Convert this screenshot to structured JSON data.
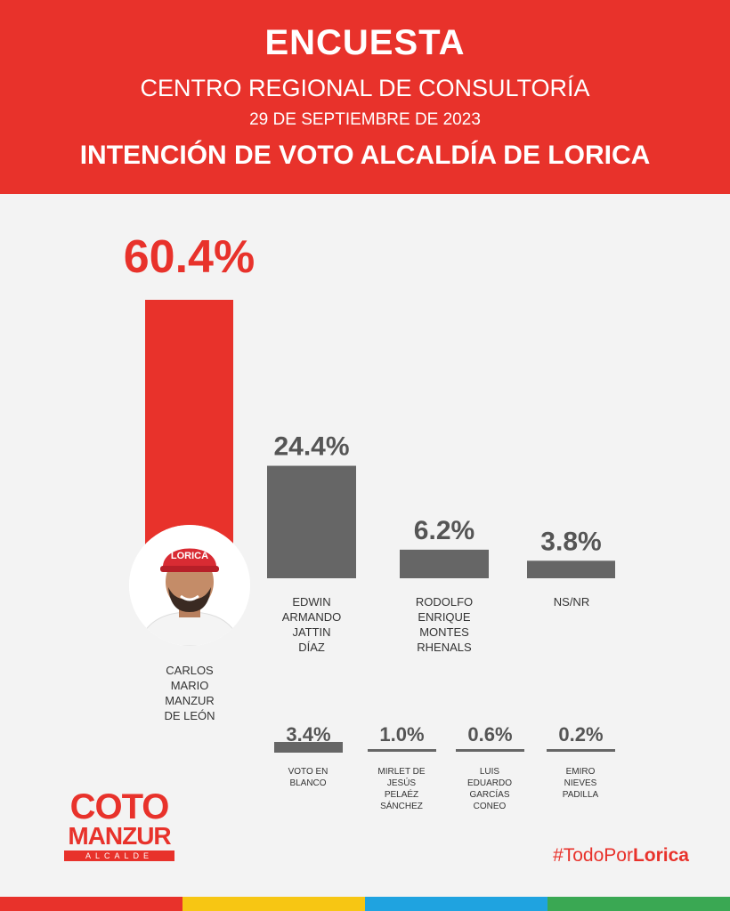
{
  "header": {
    "title": "ENCUESTA",
    "subtitle": "CENTRO REGIONAL DE CONSULTORÍA",
    "date": "29 DE SEPTIEMBRE DE 2023",
    "question": "INTENCIÓN DE VOTO ALCALDÍA DE LORICA"
  },
  "chart_data": {
    "type": "bar",
    "unit": "%",
    "series": [
      {
        "values": [
          60.4,
          24.4,
          6.2,
          3.8,
          3.4,
          1.0,
          0.6,
          0.2
        ]
      }
    ],
    "categories": [
      "CARLOS MARIO MANZUR DE LEÓN",
      "EDWIN ARMANDO JATTIN DÍAZ",
      "RODOLFO ENRIQUE MONTES RHENALS",
      "NS/NR",
      "VOTO EN BLANCO",
      "MIRLET DE JESÚS PELAÉZ SÁNCHEZ",
      "LUIS EDUARDO GARCÍAS CONEO",
      "EMIRO NIEVES PADILLA"
    ],
    "value_labels": [
      "60.4%",
      "24.4%",
      "6.2%",
      "3.8%",
      "3.4%",
      "1.0%",
      "0.6%",
      "0.2%"
    ],
    "colors": [
      "#e8322b",
      "#666666",
      "#666666",
      "#666666",
      "#666666",
      "#666666",
      "#666666",
      "#666666"
    ]
  },
  "labels": {
    "c0": [
      "CARLOS",
      "MARIO",
      "MANZUR",
      "DE LEÓN"
    ],
    "c1": [
      "EDWIN",
      "ARMANDO",
      "JATTIN",
      "DÍAZ"
    ],
    "c2": [
      "RODOLFO",
      "ENRIQUE",
      "MONTES",
      "RHENALS"
    ],
    "c3": [
      "NS/NR"
    ],
    "c4": [
      "VOTO EN",
      "BLANCO"
    ],
    "c5": [
      "MIRLET DE",
      "JESÚS",
      "PELAÉZ",
      "SÁNCHEZ"
    ],
    "c6": [
      "LUIS",
      "EDUARDO",
      "GARCÍAS",
      "CONEO"
    ],
    "c7": [
      "EMIRO",
      "NIEVES",
      "PADILLA"
    ]
  },
  "logo": {
    "line1": "COTO",
    "line2": "MANZUR",
    "line3": "ALCALDE"
  },
  "hashtag": {
    "prefix": "#TodoPor",
    "emphasis": "Lorica"
  },
  "avatar": {
    "cap_text": "LORICA"
  },
  "colors": {
    "accent": "#e8322b",
    "bar": "#666666",
    "background": "#f3f3f3",
    "strip": [
      "#e8322b",
      "#f7c613",
      "#1fa3e0",
      "#3aa853"
    ]
  }
}
